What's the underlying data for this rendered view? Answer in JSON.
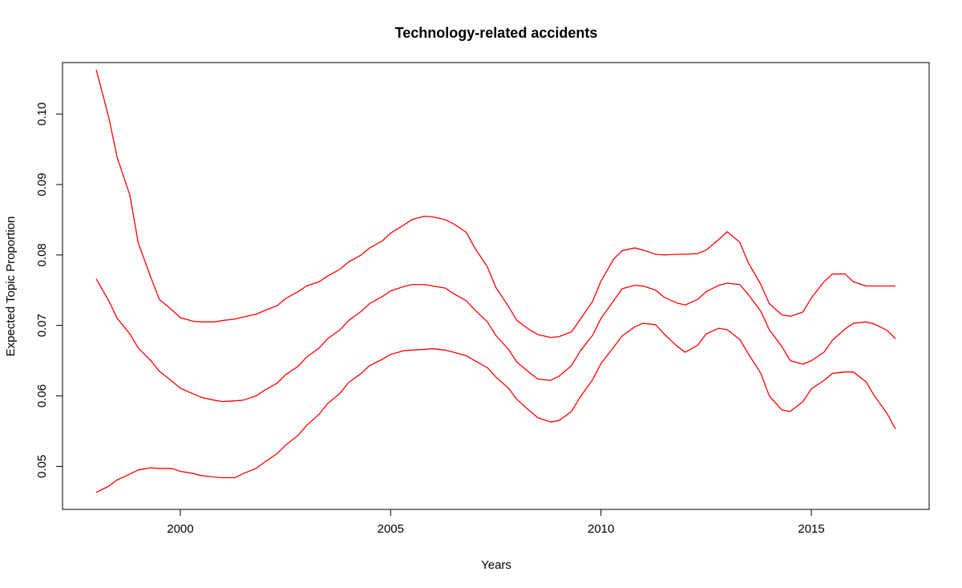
{
  "chart_data": {
    "type": "line",
    "title": "Technology-related accidents",
    "xlabel": "Years",
    "ylabel": "Expected Topic Proportion",
    "xlim": [
      1997.2,
      2017.8
    ],
    "ylim": [
      0.0439,
      0.1073
    ],
    "x_ticks": [
      2000,
      2005,
      2010,
      2015
    ],
    "y_ticks": [
      0.05,
      0.06,
      0.07,
      0.08,
      0.09,
      0.1
    ],
    "y_tick_labels": [
      "0.05",
      "0.06",
      "0.07",
      "0.08",
      "0.09",
      "0.10"
    ],
    "grid": false,
    "line_color": "#ff0000",
    "series": [
      {
        "x": [
          1998.0,
          1998.3,
          1998.5,
          1998.8,
          1999.0,
          1999.3,
          1999.5,
          1999.8,
          2000.0,
          2000.3,
          2000.5,
          2000.8,
          2001.0,
          2001.3,
          2001.5,
          2001.8,
          2002.0,
          2002.3,
          2002.5,
          2002.8,
          2003.0,
          2003.3,
          2003.5,
          2003.8,
          2004.0,
          2004.3,
          2004.5,
          2004.8,
          2005.0,
          2005.3,
          2005.5,
          2005.8,
          2006.0,
          2006.3,
          2006.5,
          2006.8,
          2007.0,
          2007.3,
          2007.5,
          2007.8,
          2008.0,
          2008.3,
          2008.5,
          2008.8,
          2009.0,
          2009.3,
          2009.5,
          2009.8,
          2010.0,
          2010.3,
          2010.5,
          2010.8,
          2011.0,
          2011.3,
          2011.5,
          2011.8,
          2012.0,
          2012.3,
          2012.5,
          2012.8,
          2013.0,
          2013.3,
          2013.5,
          2013.8,
          2014.0,
          2014.3,
          2014.5,
          2014.8,
          2015.0,
          2015.3,
          2015.5,
          2015.8,
          2016.0,
          2016.3,
          2016.5,
          2016.8,
          2017.0
        ],
        "values": [
          0.1063,
          0.0995,
          0.0938,
          0.0885,
          0.0817,
          0.0768,
          0.0737,
          0.0722,
          0.0711,
          0.0706,
          0.0705,
          0.0705,
          0.0707,
          0.0709,
          0.0712,
          0.0716,
          0.0721,
          0.0728,
          0.0738,
          0.0748,
          0.0756,
          0.0762,
          0.077,
          0.078,
          0.079,
          0.08,
          0.081,
          0.082,
          0.0831,
          0.0842,
          0.085,
          0.0855,
          0.0854,
          0.085,
          0.0844,
          0.0832,
          0.081,
          0.0783,
          0.0754,
          0.0727,
          0.0707,
          0.0694,
          0.0687,
          0.0683,
          0.0684,
          0.0691,
          0.0708,
          0.0734,
          0.0763,
          0.0794,
          0.0806,
          0.081,
          0.0807,
          0.0801,
          0.08,
          0.0801,
          0.0801,
          0.0802,
          0.0807,
          0.0822,
          0.0833,
          0.0818,
          0.0789,
          0.0758,
          0.0731,
          0.0715,
          0.0713,
          0.0719,
          0.0739,
          0.0762,
          0.0773,
          0.0773,
          0.0762,
          0.0756,
          0.0756,
          0.0756,
          0.0756
        ]
      },
      {
        "x": [
          1998.0,
          1998.3,
          1998.5,
          1998.8,
          1999.0,
          1999.3,
          1999.5,
          1999.8,
          2000.0,
          2000.3,
          2000.5,
          2000.8,
          2001.0,
          2001.3,
          2001.5,
          2001.8,
          2002.0,
          2002.3,
          2002.5,
          2002.8,
          2003.0,
          2003.3,
          2003.5,
          2003.8,
          2004.0,
          2004.3,
          2004.5,
          2004.8,
          2005.0,
          2005.3,
          2005.5,
          2005.8,
          2006.0,
          2006.3,
          2006.5,
          2006.8,
          2007.0,
          2007.3,
          2007.5,
          2007.8,
          2008.0,
          2008.3,
          2008.5,
          2008.8,
          2009.0,
          2009.3,
          2009.5,
          2009.8,
          2010.0,
          2010.3,
          2010.5,
          2010.8,
          2011.0,
          2011.3,
          2011.5,
          2011.8,
          2012.0,
          2012.3,
          2012.5,
          2012.8,
          2013.0,
          2013.3,
          2013.5,
          2013.8,
          2014.0,
          2014.3,
          2014.5,
          2014.8,
          2015.0,
          2015.3,
          2015.5,
          2015.8,
          2016.0,
          2016.3,
          2016.5,
          2016.8,
          2017.0
        ],
        "values": [
          0.0766,
          0.0735,
          0.071,
          0.0688,
          0.0668,
          0.065,
          0.0635,
          0.0621,
          0.0611,
          0.0603,
          0.0598,
          0.0594,
          0.0592,
          0.0593,
          0.0594,
          0.06,
          0.0608,
          0.0618,
          0.063,
          0.0642,
          0.0655,
          0.0668,
          0.0681,
          0.0694,
          0.0707,
          0.072,
          0.0731,
          0.0741,
          0.0749,
          0.0755,
          0.0758,
          0.0758,
          0.0756,
          0.0753,
          0.0745,
          0.0735,
          0.0722,
          0.0705,
          0.0686,
          0.0666,
          0.0648,
          0.0633,
          0.0624,
          0.0622,
          0.0628,
          0.0643,
          0.0663,
          0.0686,
          0.071,
          0.0735,
          0.0752,
          0.0757,
          0.0756,
          0.075,
          0.074,
          0.0732,
          0.0729,
          0.0737,
          0.0748,
          0.0757,
          0.076,
          0.0758,
          0.0744,
          0.072,
          0.0694,
          0.067,
          0.065,
          0.0645,
          0.065,
          0.0662,
          0.0679,
          0.0695,
          0.0703,
          0.0705,
          0.0702,
          0.0693,
          0.0681
        ]
      },
      {
        "x": [
          1998.0,
          1998.3,
          1998.5,
          1998.8,
          1999.0,
          1999.3,
          1999.5,
          1999.8,
          2000.0,
          2000.3,
          2000.5,
          2000.8,
          2001.0,
          2001.3,
          2001.5,
          2001.8,
          2002.0,
          2002.3,
          2002.5,
          2002.8,
          2003.0,
          2003.3,
          2003.5,
          2003.8,
          2004.0,
          2004.3,
          2004.5,
          2004.8,
          2005.0,
          2005.3,
          2005.5,
          2005.8,
          2006.0,
          2006.3,
          2006.5,
          2006.8,
          2007.0,
          2007.3,
          2007.5,
          2007.8,
          2008.0,
          2008.3,
          2008.5,
          2008.8,
          2009.0,
          2009.3,
          2009.5,
          2009.8,
          2010.0,
          2010.3,
          2010.5,
          2010.8,
          2011.0,
          2011.3,
          2011.5,
          2011.8,
          2012.0,
          2012.3,
          2012.5,
          2012.8,
          2013.0,
          2013.3,
          2013.5,
          2013.8,
          2014.0,
          2014.3,
          2014.5,
          2014.8,
          2015.0,
          2015.3,
          2015.5,
          2015.8,
          2016.0,
          2016.3,
          2016.5,
          2016.8,
          2017.0
        ],
        "values": [
          0.0463,
          0.0472,
          0.0481,
          0.0489,
          0.0495,
          0.0498,
          0.0497,
          0.0497,
          0.0493,
          0.049,
          0.0487,
          0.0485,
          0.0484,
          0.0484,
          0.049,
          0.0497,
          0.0506,
          0.0518,
          0.053,
          0.0544,
          0.0558,
          0.0574,
          0.0589,
          0.0604,
          0.0619,
          0.0632,
          0.0643,
          0.0652,
          0.0659,
          0.0664,
          0.0665,
          0.0666,
          0.0667,
          0.0665,
          0.0662,
          0.0657,
          0.065,
          0.064,
          0.0627,
          0.0611,
          0.0595,
          0.0579,
          0.0569,
          0.0563,
          0.0565,
          0.0578,
          0.0598,
          0.0623,
          0.0646,
          0.0669,
          0.0685,
          0.0698,
          0.0703,
          0.0701,
          0.0688,
          0.0671,
          0.0662,
          0.0672,
          0.0688,
          0.0696,
          0.0694,
          0.068,
          0.066,
          0.0632,
          0.06,
          0.058,
          0.0578,
          0.0592,
          0.061,
          0.0622,
          0.0632,
          0.0634,
          0.0634,
          0.062,
          0.06,
          0.0575,
          0.0553
        ]
      }
    ]
  }
}
